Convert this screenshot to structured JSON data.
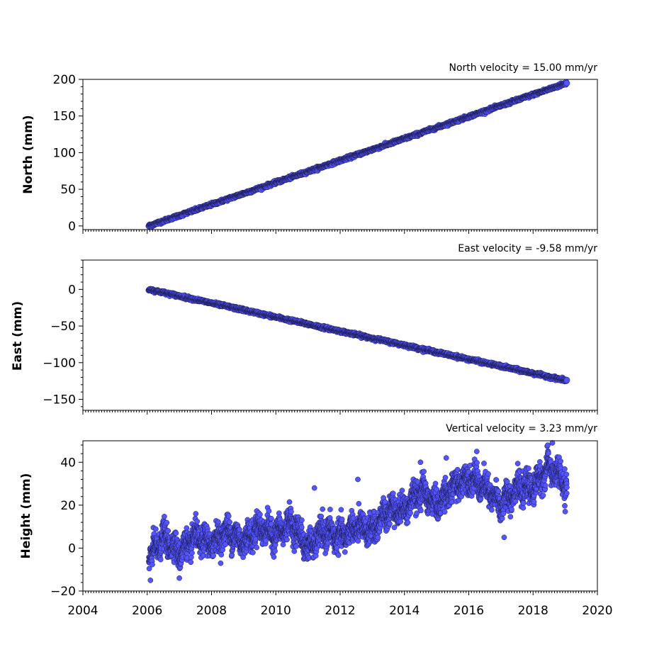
{
  "colors": {
    "marker_fill": "#5555ff",
    "marker_edge": "#1a1a4d",
    "axis": "#000000",
    "background": "#ffffff"
  },
  "chart_data": [
    {
      "type": "scatter",
      "title": "North velocity = 15.00 mm/yr",
      "xlabel": "",
      "ylabel": "North (mm)",
      "xlim": [
        2004,
        2020
      ],
      "ylim": [
        -5,
        200
      ],
      "yticks": [
        0,
        50,
        100,
        150,
        200
      ],
      "xticks": [
        2004,
        2006,
        2008,
        2010,
        2012,
        2014,
        2016,
        2018,
        2020
      ],
      "show_xtick_labels": false,
      "grid": false,
      "series": [
        {
          "model": {
            "start": 2006.05,
            "end": 2019.05,
            "intercept_at_start": 0,
            "velocity": 15.0
          },
          "x": [
            2006.05,
            2007,
            2008,
            2009,
            2010,
            2011,
            2012,
            2013,
            2014,
            2015,
            2016,
            2017,
            2018,
            2019,
            2019.05
          ],
          "y": [
            0,
            14,
            29,
            44,
            59,
            74,
            89,
            104,
            119,
            134,
            149,
            164,
            179,
            194,
            195
          ]
        }
      ]
    },
    {
      "type": "scatter",
      "title": "East velocity = -9.58 mm/yr",
      "xlabel": "",
      "ylabel": "East (mm)",
      "xlim": [
        2004,
        2020
      ],
      "ylim": [
        -165,
        40
      ],
      "yticks": [
        0,
        -50,
        -100,
        -150
      ],
      "xticks": [
        2004,
        2006,
        2008,
        2010,
        2012,
        2014,
        2016,
        2018,
        2020
      ],
      "show_xtick_labels": false,
      "grid": false,
      "series": [
        {
          "model": {
            "start": 2006.05,
            "end": 2019.05,
            "intercept_at_start": 0,
            "velocity": -9.58
          },
          "x": [
            2006.05,
            2008,
            2010,
            2012,
            2014,
            2016,
            2018,
            2019.05
          ],
          "y": [
            0,
            -19,
            -38,
            -57,
            -76,
            -95,
            -115,
            -125
          ]
        }
      ]
    },
    {
      "type": "scatter",
      "title": "Vertical velocity = 3.23 mm/yr",
      "xlabel": "",
      "ylabel": "Height (mm)",
      "xlim": [
        2004,
        2020
      ],
      "ylim": [
        -20,
        50
      ],
      "yticks": [
        -20,
        0,
        20,
        40
      ],
      "xticks": [
        2004,
        2006,
        2008,
        2010,
        2012,
        2014,
        2016,
        2018,
        2020
      ],
      "show_xtick_labels": true,
      "grid": false,
      "series": [
        {
          "trend": {
            "x": [
              2006.05,
              2006.5,
              2007.0,
              2007.5,
              2008.0,
              2008.5,
              2009.0,
              2009.5,
              2010.0,
              2010.5,
              2011.0,
              2011.5,
              2012.0,
              2012.5,
              2013.0,
              2013.5,
              2014.0,
              2014.5,
              2015.0,
              2015.5,
              2016.0,
              2016.5,
              2017.0,
              2017.5,
              2018.0,
              2018.5,
              2019.05
            ],
            "y": [
              -5,
              5,
              -2,
              5,
              2,
              8,
              3,
              10,
              6,
              12,
              0,
              8,
              5,
              10,
              8,
              18,
              18,
              27,
              20,
              28,
              33,
              28,
              20,
              28,
              28,
              38,
              30
            ]
          },
          "scatter_band": 8,
          "outliers": {
            "x": [
              2006.1,
              2007.0,
              2011.2,
              2012.55,
              2014.5,
              2015.3,
              2016.25,
              2017.1,
              2018.6,
              2019.0
            ],
            "y": [
              -15,
              -14,
              28,
              32,
              40,
              42,
              45,
              5,
              49,
              17
            ]
          }
        }
      ]
    }
  ]
}
